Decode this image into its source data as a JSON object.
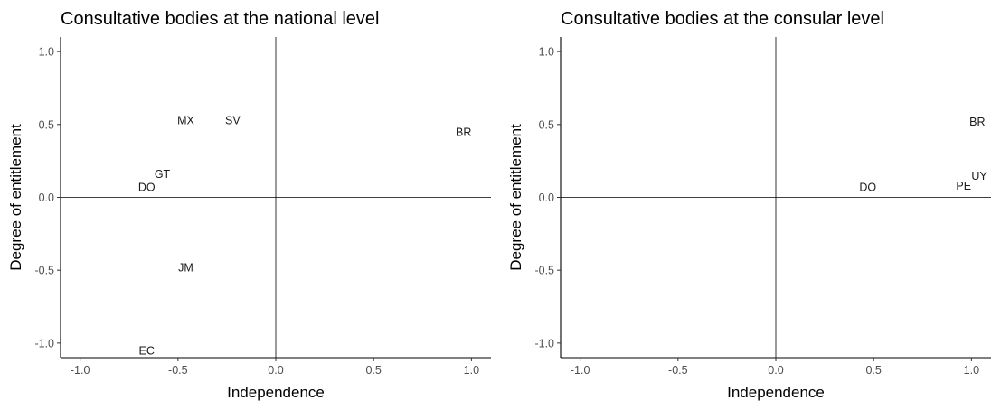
{
  "chart_data": [
    {
      "type": "scatter",
      "title": "Consultative bodies at the national level",
      "xlabel": "Independence",
      "ylabel": "Degree of entitlement",
      "xlim": [
        -1.1,
        1.1
      ],
      "ylim": [
        -1.1,
        1.1
      ],
      "xticks": [
        "-1.0",
        "-0.5",
        "0.0",
        "0.5",
        "1.0"
      ],
      "yticks": [
        "-1.0",
        "-0.5",
        "0.0",
        "0.5",
        "1.0"
      ],
      "grid": false,
      "reference_lines": {
        "x": 0,
        "y": 0
      },
      "points": [
        {
          "label": "MX",
          "x": -0.46,
          "y": 0.53
        },
        {
          "label": "SV",
          "x": -0.22,
          "y": 0.53
        },
        {
          "label": "BR",
          "x": 0.96,
          "y": 0.45
        },
        {
          "label": "GT",
          "x": -0.58,
          "y": 0.16
        },
        {
          "label": "DO",
          "x": -0.66,
          "y": 0.07
        },
        {
          "label": "JM",
          "x": -0.46,
          "y": -0.48
        },
        {
          "label": "EC",
          "x": -0.66,
          "y": -1.05
        }
      ]
    },
    {
      "type": "scatter",
      "title": "Consultative bodies at the consular level",
      "xlabel": "Independence",
      "ylabel": "Degree of entitlement",
      "xlim": [
        -1.1,
        1.1
      ],
      "ylim": [
        -1.1,
        1.1
      ],
      "xticks": [
        "-1.0",
        "-0.5",
        "0.0",
        "0.5",
        "1.0"
      ],
      "yticks": [
        "-1.0",
        "-0.5",
        "0.0",
        "0.5",
        "1.0"
      ],
      "grid": false,
      "reference_lines": {
        "x": 0,
        "y": 0
      },
      "points": [
        {
          "label": "BR",
          "x": 1.03,
          "y": 0.52
        },
        {
          "label": "UY",
          "x": 1.04,
          "y": 0.15
        },
        {
          "label": "PE",
          "x": 0.96,
          "y": 0.08
        },
        {
          "label": "DO",
          "x": 0.47,
          "y": 0.07
        }
      ]
    }
  ]
}
